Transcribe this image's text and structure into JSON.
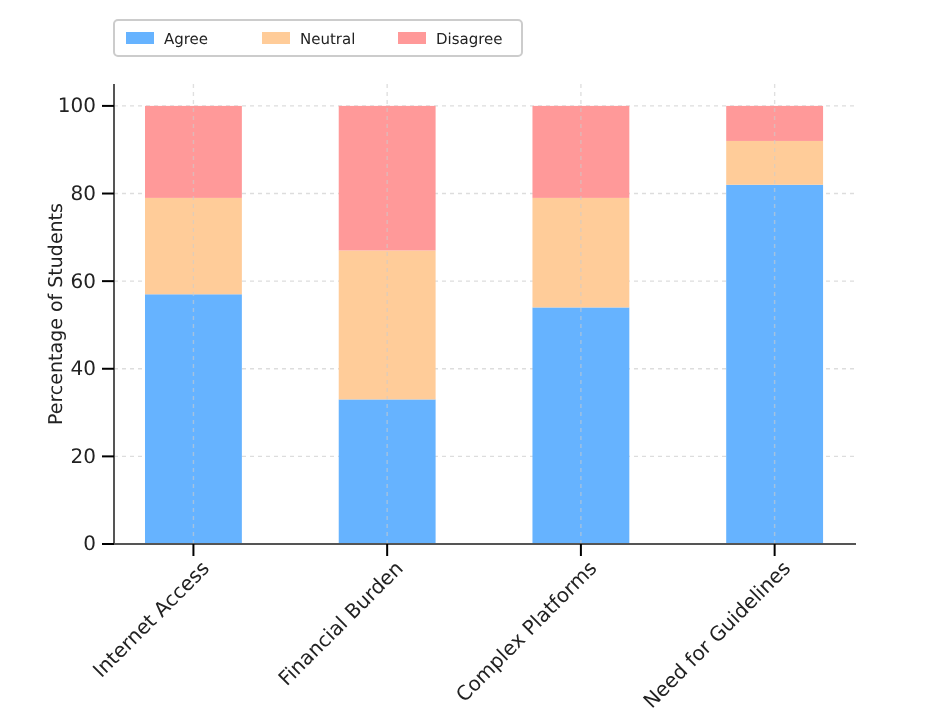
{
  "chart_data": {
    "type": "bar",
    "ylabel": "Percentage of Students",
    "categories": [
      "Internet Access",
      "Financial Burden",
      "Complex Platforms",
      "Need for Guidelines"
    ],
    "series": [
      {
        "name": "Agree",
        "color": "#66b3ff",
        "values": [
          57,
          33,
          54,
          82
        ]
      },
      {
        "name": "Neutral",
        "color": "#ffcc99",
        "values": [
          22,
          34,
          25,
          10
        ]
      },
      {
        "name": "Disagree",
        "color": "#ff9999",
        "values": [
          21,
          33,
          21,
          8
        ]
      }
    ],
    "stacked": true,
    "ylim": [
      0,
      105
    ],
    "yticks": [
      0,
      20,
      40,
      60,
      80,
      100
    ],
    "grid": true,
    "legend": "top left"
  }
}
